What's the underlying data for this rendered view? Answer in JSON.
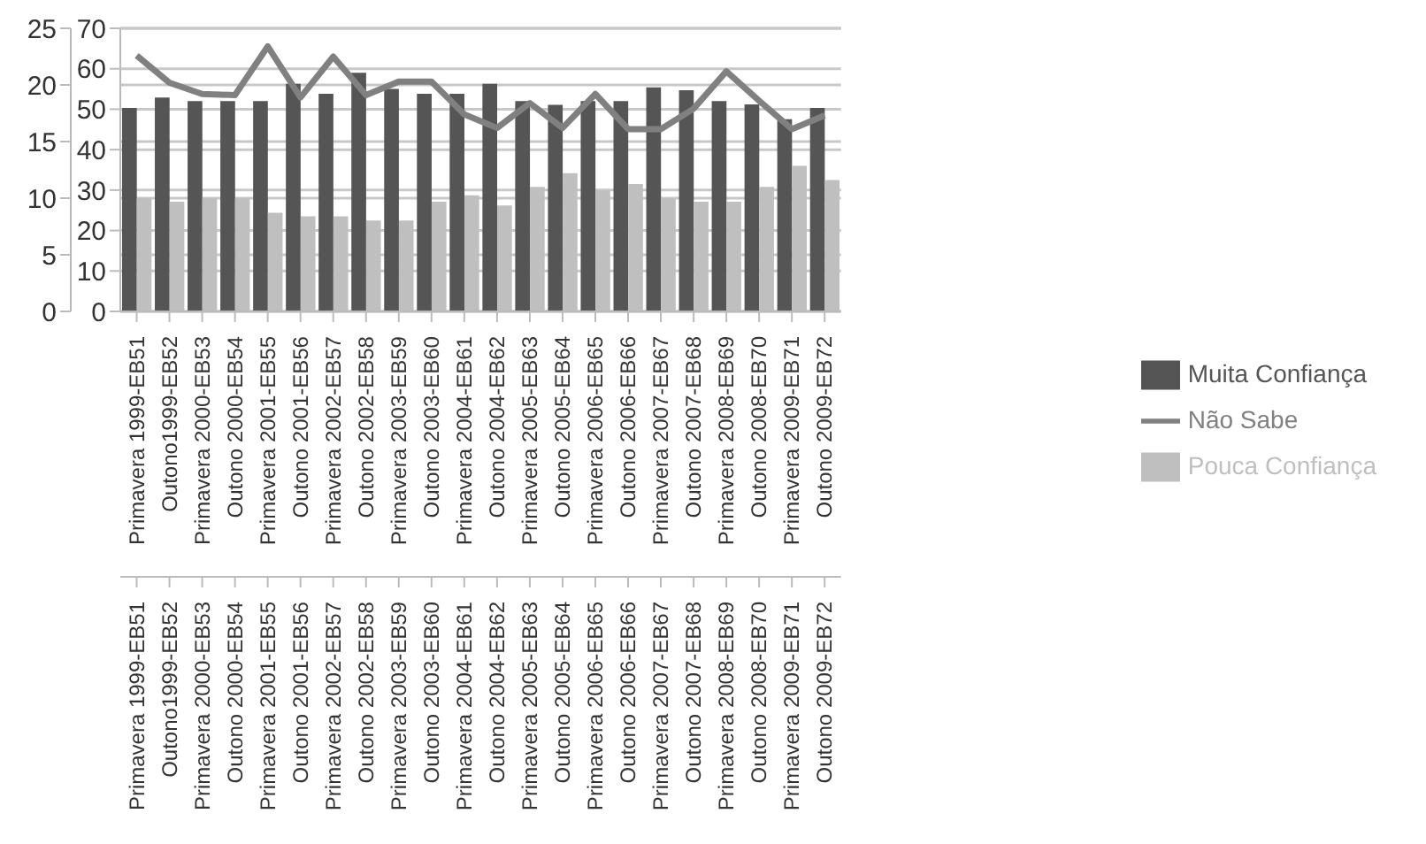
{
  "chart_data": {
    "type": "bar",
    "categories": [
      "Primavera 1999-EB51",
      "Outono1999-EB52",
      "Primavera 2000-EB53",
      "Outono 2000-EB54",
      "Primavera 2001-EB55",
      "Outono 2001-EB56",
      "Primavera 2002-EB57",
      "Outono 2002-EB58",
      "Primavera 2003-EB59",
      "Outono 2003-EB60",
      "Primavera 2004-EB61",
      "Outono 2004-EB62",
      "Primavera 2005-EB63",
      "Outono 2005-EB64",
      "Primavera 2006-EB65",
      "Outono 2006-EB66",
      "Primavera 2007-EB67",
      "Outono 2007-EB68",
      "Primavera 2008-EB69",
      "Outono 2008-EB70",
      "Primavera 2009-EB71",
      "Outono 2009-EB72"
    ],
    "series": [
      {
        "name": "Muita Confiança",
        "color": "#555555",
        "values": [
          50.3,
          52.9,
          52,
          52,
          52,
          56.3,
          53.8,
          59,
          55,
          53.8,
          53.8,
          56.3,
          52,
          51.1,
          52,
          52,
          55.4,
          54.7,
          52,
          51.2,
          47.5,
          50.3
        ]
      },
      {
        "name": "Pouca Confiança",
        "color": "#bfbfbf",
        "values": [
          28,
          27.1,
          28,
          28,
          24.4,
          23.5,
          23.5,
          22.5,
          22.5,
          27.1,
          28.7,
          26.2,
          30.8,
          34.2,
          29.9,
          31.5,
          28,
          27.1,
          27.1,
          30.8,
          36,
          32.5
        ]
      },
      {
        "name": "Não Sabe",
        "type": "line",
        "axis": "y2",
        "color": "#808080",
        "values": [
          22.6,
          20.2,
          19.2,
          19.1,
          23.4,
          18.9,
          22.5,
          19.1,
          20.3,
          20.3,
          17.4,
          16.2,
          18.4,
          16.2,
          19.2,
          16.1,
          16.1,
          17.9,
          21.2,
          18.6,
          16.1,
          17.3
        ]
      }
    ],
    "ylim": [
      0,
      70
    ],
    "yticks": [
      0,
      10,
      20,
      30,
      40,
      50,
      60,
      70
    ],
    "y2lim": [
      0,
      25
    ],
    "y2ticks": [
      0,
      5,
      10,
      15,
      20,
      25
    ],
    "grid": "y",
    "legend": "right",
    "marker": "none",
    "line_style": "solid"
  }
}
